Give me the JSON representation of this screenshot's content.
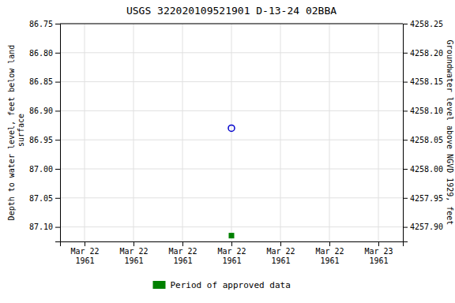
{
  "chart_data": {
    "type": "scatter",
    "title": "USGS 322020109521901 D-13-24 02BBA",
    "y_label": "Depth to water level, feet below land\n surface",
    "y2_label": "Groundwater level above NGVD 1929, feet",
    "categories": [
      "Mar 22\n1961",
      "Mar 22\n1961",
      "Mar 22\n1961",
      "Mar 22\n1961",
      "Mar 22\n1961",
      "Mar 22\n1961",
      "Mar 23\n1961"
    ],
    "series": [
      {
        "color": "#0000cc",
        "marker": "circle-open",
        "values": [
          null,
          null,
          null,
          86.93,
          null,
          null,
          null
        ]
      },
      {
        "name": "Period of approved data",
        "color": "#008000",
        "marker": "square",
        "values": [
          null,
          null,
          null,
          87.115,
          null,
          null,
          null
        ]
      }
    ],
    "ylim": [
      87.125,
      86.75
    ],
    "yticks": [
      86.75,
      {
        "value": 86.8,
        "label": "86.80"
      },
      86.85,
      {
        "value": 86.9,
        "label": "86.90"
      },
      86.95,
      {
        "value": 87.0,
        "label": "87.00"
      },
      87.05,
      {
        "value": 87.1,
        "label": "87.10"
      }
    ],
    "y2lim": [
      4257.875,
      4258.25
    ],
    "y2ticks": [
      4258.25,
      {
        "value": 4258.2,
        "label": "4258.20"
      },
      4258.15,
      {
        "value": 4258.1,
        "label": "4258.10"
      },
      4258.05,
      {
        "value": 4258.0,
        "label": "4258.00"
      },
      4257.95,
      {
        "value": 4257.9,
        "label": "4257.90"
      }
    ],
    "grid": true,
    "legend": "bottom"
  }
}
